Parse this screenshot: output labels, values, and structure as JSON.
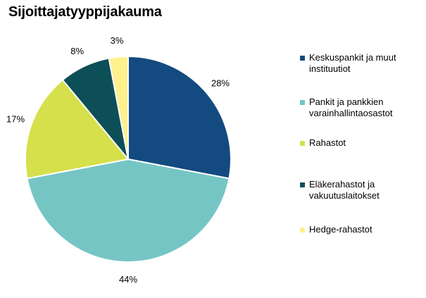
{
  "chart_data": {
    "type": "pie",
    "title": "Sijoittajatyyppijakauma",
    "slices": [
      {
        "name": "Keskuspankit ja muut instituutiot",
        "label_lines": [
          "Keskuspankit ja muut",
          "instituutiot"
        ],
        "value": 28,
        "label": "28%",
        "color": "#134a80"
      },
      {
        "name": "Pankit ja pankkien varainhallintaosastot",
        "label_lines": [
          "Pankit ja pankkien",
          "varainhallintaosastot"
        ],
        "value": 44,
        "label": "44%",
        "color": "#76c5c5"
      },
      {
        "name": "Rahastot",
        "label_lines": [
          "Rahastot"
        ],
        "value": 17,
        "label": "17%",
        "color": "#d5e04b"
      },
      {
        "name": "Eläkerahastot ja vakuutuslaitokset",
        "label_lines": [
          "Eläkerahastot ja",
          "vakuutuslaitokset"
        ],
        "value": 8,
        "label": "8%",
        "color": "#0d4f57"
      },
      {
        "name": "Hedge-rahastot",
        "label_lines": [
          "Hedge-rahastot"
        ],
        "value": 3,
        "label": "3%",
        "color": "#fff18c"
      }
    ],
    "start_angle_deg": 0,
    "direction": "clockwise",
    "legend_position": "right"
  }
}
